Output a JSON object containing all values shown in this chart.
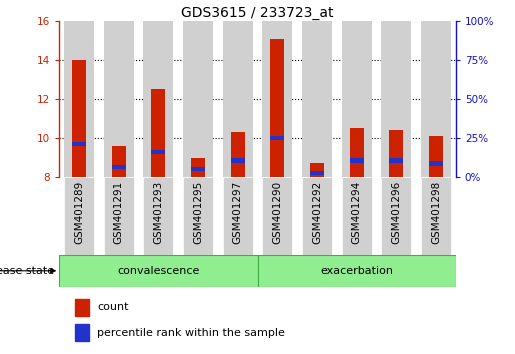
{
  "title": "GDS3615 / 233723_at",
  "samples": [
    "GSM401289",
    "GSM401291",
    "GSM401293",
    "GSM401295",
    "GSM401297",
    "GSM401290",
    "GSM401292",
    "GSM401294",
    "GSM401296",
    "GSM401298"
  ],
  "groups": [
    "convalescence",
    "convalescence",
    "convalescence",
    "convalescence",
    "convalescence",
    "exacerbation",
    "exacerbation",
    "exacerbation",
    "exacerbation",
    "exacerbation"
  ],
  "count_values": [
    14.0,
    9.6,
    12.5,
    9.0,
    10.3,
    15.1,
    8.7,
    10.5,
    10.4,
    10.1
  ],
  "percentile_values": [
    9.7,
    8.5,
    9.3,
    8.4,
    8.85,
    10.0,
    8.2,
    8.85,
    8.85,
    8.7
  ],
  "ymin": 8,
  "ymax": 16,
  "yticks_left": [
    8,
    10,
    12,
    14,
    16
  ],
  "yticks_right": [
    0,
    25,
    50,
    75,
    100
  ],
  "bar_color_red": "#cc2200",
  "bar_color_blue": "#2233cc",
  "bar_bg_color": "#d0d0d0",
  "green_light": "#90ee90",
  "green_border": "#44aa44",
  "left_axis_color": "#cc2200",
  "right_axis_color": "#1111cc",
  "blue_bar_height": 0.22,
  "disease_state_label": "disease state",
  "legend_items": [
    "count",
    "percentile rank within the sample"
  ],
  "title_fontsize": 10,
  "tick_fontsize": 7.5,
  "label_fontsize": 8,
  "sample_label_fontsize": 7.5
}
